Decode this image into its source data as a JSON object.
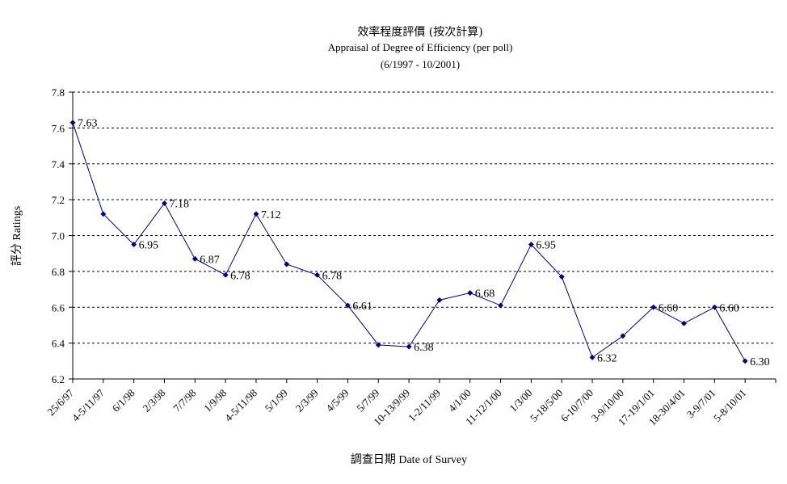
{
  "chart_data": {
    "type": "line",
    "title": "效率程度評價 (按次計算)",
    "subtitle": "Appraisal of Degree of Efficiency (per poll)",
    "period": "(6/1997 - 10/2001)",
    "xlabel": "調查日期 Date of Survey",
    "ylabel": "評分 Ratings",
    "ylim": [
      6.2,
      7.8
    ],
    "yticks": [
      "6.2",
      "6.4",
      "6.6",
      "6.8",
      "7.0",
      "7.2",
      "7.4",
      "7.6",
      "7.8"
    ],
    "grid": true,
    "categories": [
      "25/6/97",
      "4-5/11/97",
      "6/1/98",
      "2/3/98",
      "7/7/98",
      "1/9/98",
      "4-5/11/98",
      "5/1/99",
      "2/3/99",
      "4/5/99",
      "5/7/99",
      "10-13/9/99",
      "1-2/11/99",
      "4/1/00",
      "11-12/1/00",
      "1/3/00",
      "5-18/5/00",
      "6-10/7/00",
      "3-9/10/00",
      "17-19/1/01",
      "18-30/4/01",
      "3-9/7/01",
      "5-8/10/01"
    ],
    "values": [
      7.63,
      7.12,
      6.95,
      7.18,
      6.87,
      6.78,
      7.12,
      6.84,
      6.78,
      6.61,
      6.39,
      6.38,
      6.64,
      6.68,
      6.61,
      6.95,
      6.77,
      6.32,
      6.44,
      6.6,
      6.51,
      6.6,
      6.3
    ],
    "data_labels": [
      "7.63",
      null,
      "6.95",
      "7.18",
      "6.87",
      "6.78",
      "7.12",
      null,
      "6.78",
      "6.61",
      null,
      "6.38",
      null,
      "6.68",
      null,
      "6.95",
      null,
      "6.32",
      null,
      "6.60",
      null,
      "6.60",
      "6.30"
    ],
    "line_color": "#000080",
    "marker_color": "#000080",
    "grid_color": "#000000"
  }
}
